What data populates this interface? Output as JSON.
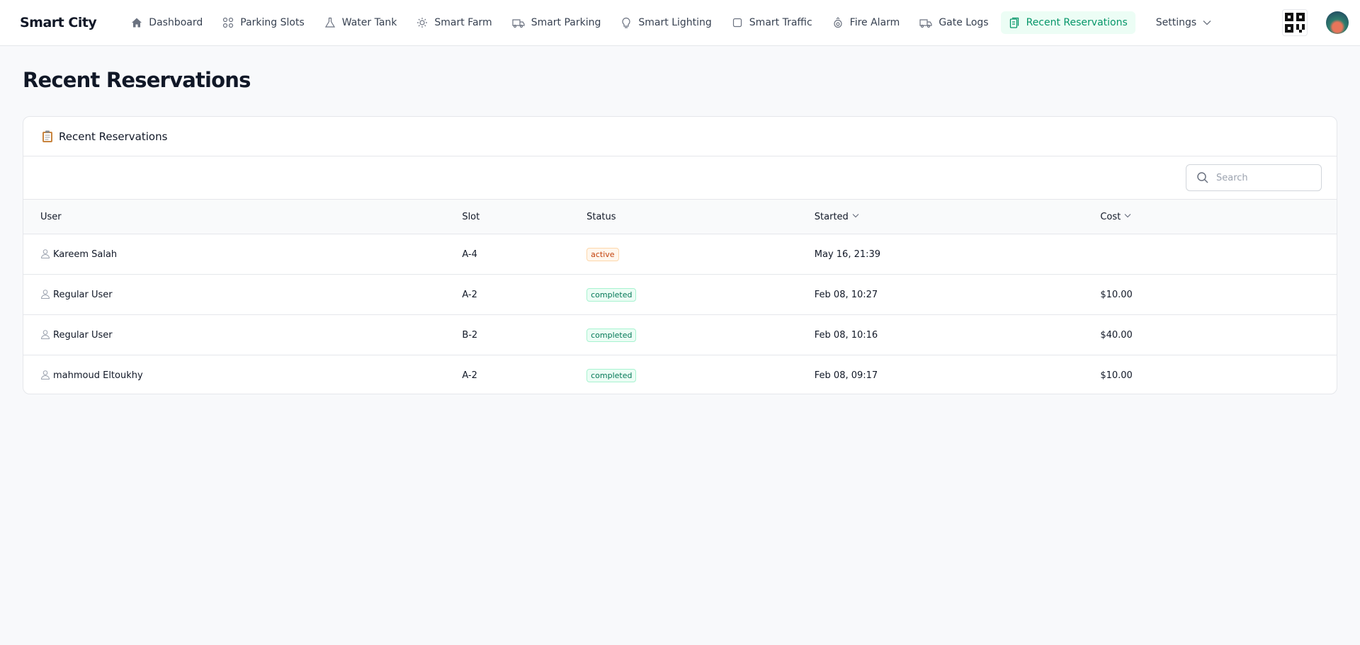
{
  "header": {
    "brand": "Smart City",
    "nav": [
      "Dashboard",
      "Parking Slots",
      "Water Tank",
      "Smart Farm",
      "Smart Parking",
      "Smart Lighting",
      "Smart Traffic",
      "Fire Alarm",
      "Gate Logs",
      "Recent Reservations",
      "Settings"
    ]
  },
  "page": {
    "title": "Recent Reservations"
  },
  "card": {
    "title": "Recent Reservations",
    "search_placeholder": "Search"
  },
  "table": {
    "columns": [
      "User",
      "Slot",
      "Status",
      "Started",
      "Cost"
    ],
    "rows": [
      [
        "Kareem Salah",
        "A-4",
        "active",
        "May 16, 21:39",
        null
      ],
      [
        "Regular User",
        "A-2",
        "completed",
        "Feb 08, 10:27",
        "$10.00"
      ],
      [
        "Regular User",
        "B-2",
        "completed",
        "Feb 08, 10:16",
        "$40.00"
      ],
      [
        "mahmoud Eltoukhy",
        "A-2",
        "completed",
        "Feb 08, 09:17",
        "$10.00"
      ]
    ]
  }
}
